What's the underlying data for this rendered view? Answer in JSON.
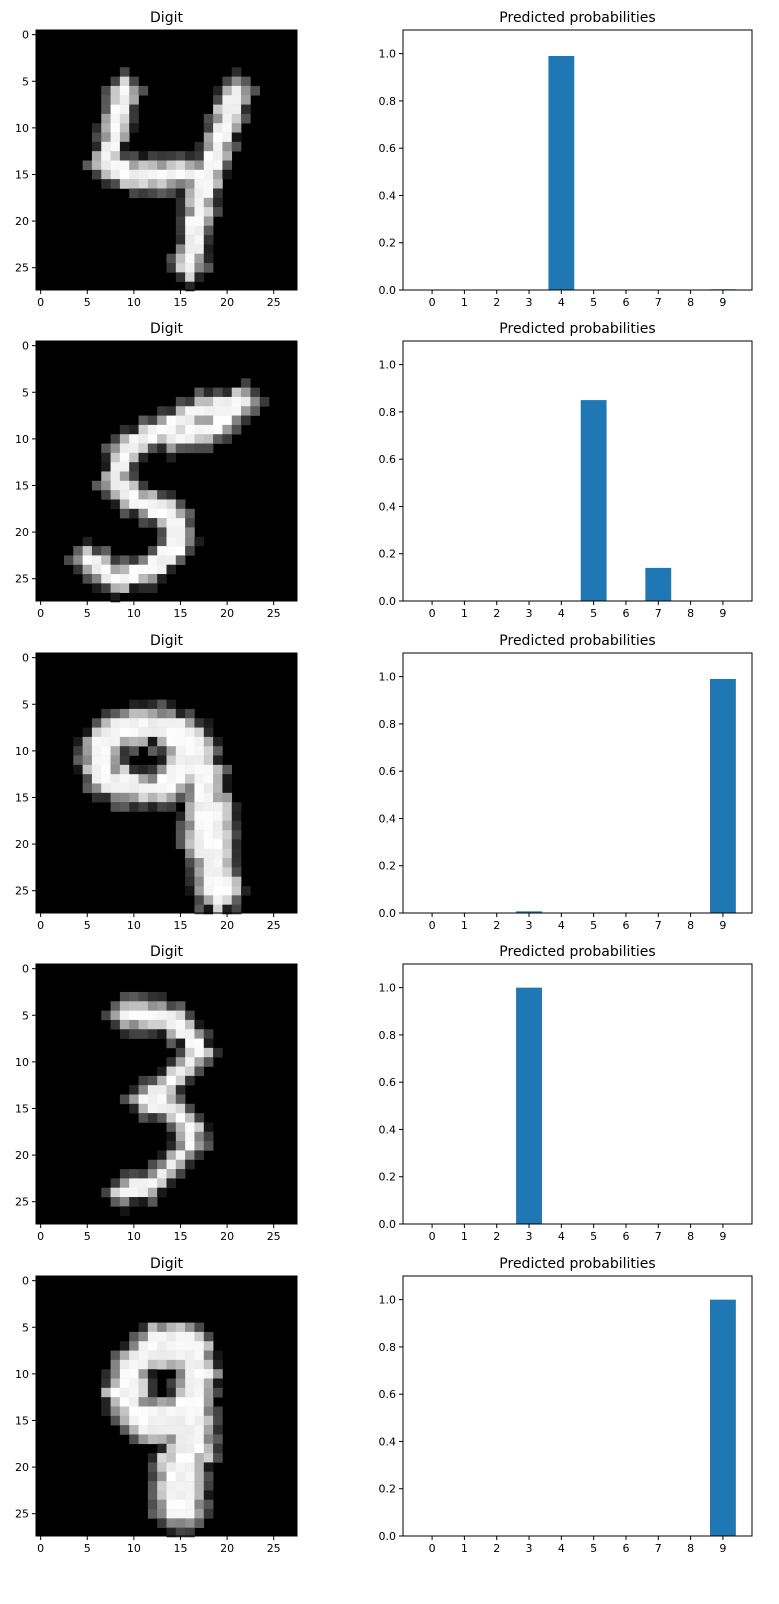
{
  "figure": {
    "background": "#ffffff",
    "bar_color": "#1f77b4"
  },
  "chart_data": [
    {
      "row": 1,
      "digit_panel": {
        "type": "heatmap",
        "title": "Digit",
        "colormap": "gray",
        "xticks": [
          "0",
          "5",
          "10",
          "15",
          "20",
          "25"
        ],
        "yticks": [
          "0",
          "5",
          "10",
          "15",
          "20",
          "25"
        ],
        "strokes": [
          {
            "points": [
              [
                9,
                6
              ],
              [
                8,
                10
              ],
              [
                7,
                14
              ],
              [
                10,
                15
              ],
              [
                14,
                15
              ],
              [
                18,
                15
              ]
            ],
            "width": 1.3
          },
          {
            "points": [
              [
                21,
                6
              ],
              [
                19,
                12
              ],
              [
                17,
                18
              ],
              [
                16,
                25
              ]
            ],
            "width": 1.4
          }
        ]
      },
      "prob_panel": {
        "type": "bar",
        "title": "Predicted probabilities",
        "categories": [
          "0",
          "1",
          "2",
          "3",
          "4",
          "5",
          "6",
          "7",
          "8",
          "9"
        ],
        "values": [
          0.0,
          0.0,
          0.0,
          0.0,
          0.99,
          0.0,
          0.0,
          0.0,
          0.0,
          0.003
        ],
        "ylim": [
          0,
          1.1
        ],
        "yticks": [
          "0.0",
          "0.2",
          "0.4",
          "0.6",
          "0.8",
          "1.0"
        ]
      }
    },
    {
      "row": 2,
      "digit_panel": {
        "type": "heatmap",
        "title": "Digit",
        "colormap": "gray",
        "xticks": [
          "0",
          "5",
          "10",
          "15",
          "20",
          "25"
        ],
        "yticks": [
          "0",
          "5",
          "10",
          "15",
          "20",
          "25"
        ],
        "strokes": [
          {
            "points": [
              [
                22,
                6
              ],
              [
                17,
                7
              ],
              [
                13,
                9
              ],
              [
                14,
                10
              ],
              [
                18,
                9
              ],
              [
                21,
                7
              ]
            ],
            "width": 1.2
          },
          {
            "points": [
              [
                13,
                9
              ],
              [
                9,
                11
              ],
              [
                8,
                15
              ],
              [
                11,
                17
              ],
              [
                14,
                18
              ],
              [
                15,
                21
              ],
              [
                12,
                24
              ],
              [
                8,
                25
              ],
              [
                5,
                23
              ]
            ],
            "width": 1.3
          }
        ]
      },
      "prob_panel": {
        "type": "bar",
        "title": "Predicted probabilities",
        "categories": [
          "0",
          "1",
          "2",
          "3",
          "4",
          "5",
          "6",
          "7",
          "8",
          "9"
        ],
        "values": [
          0.0,
          0.0,
          0.0,
          0.0,
          0.0,
          0.85,
          0.0,
          0.14,
          0.0,
          0.0
        ],
        "ylim": [
          0,
          1.1
        ],
        "yticks": [
          "0.0",
          "0.2",
          "0.4",
          "0.6",
          "0.8",
          "1.0"
        ]
      }
    },
    {
      "row": 3,
      "digit_panel": {
        "type": "heatmap",
        "title": "Digit",
        "colormap": "gray",
        "xticks": [
          "0",
          "5",
          "10",
          "15",
          "20",
          "25"
        ],
        "yticks": [
          "0",
          "5",
          "10",
          "15",
          "20",
          "25"
        ],
        "strokes": [
          {
            "points": [
              [
                15,
                8
              ],
              [
                12,
                7
              ],
              [
                8,
                8
              ],
              [
                6,
                10
              ],
              [
                7,
                13
              ],
              [
                10,
                14
              ],
              [
                13,
                14
              ],
              [
                15,
                12
              ],
              [
                15,
                9
              ],
              [
                15,
                8
              ]
            ],
            "width": 1.8
          },
          {
            "points": [
              [
                14,
                8
              ],
              [
                16,
                9
              ],
              [
                17,
                12
              ],
              [
                18,
                16
              ],
              [
                18,
                20
              ],
              [
                19,
                25
              ]
            ],
            "width": 2.2
          }
        ]
      },
      "prob_panel": {
        "type": "bar",
        "title": "Predicted probabilities",
        "categories": [
          "0",
          "1",
          "2",
          "3",
          "4",
          "5",
          "6",
          "7",
          "8",
          "9"
        ],
        "values": [
          0.0,
          0.0,
          0.0,
          0.007,
          0.0,
          0.0,
          0.0,
          0.0,
          0.0,
          0.99
        ],
        "ylim": [
          0,
          1.1
        ],
        "yticks": [
          "0.0",
          "0.2",
          "0.4",
          "0.6",
          "0.8",
          "1.0"
        ]
      }
    },
    {
      "row": 4,
      "digit_panel": {
        "type": "heatmap",
        "title": "Digit",
        "colormap": "gray",
        "xticks": [
          "0",
          "5",
          "10",
          "15",
          "20",
          "25"
        ],
        "yticks": [
          "0",
          "5",
          "10",
          "15",
          "20",
          "25"
        ],
        "strokes": [
          {
            "points": [
              [
                9,
                5
              ],
              [
                13,
                5
              ],
              [
                16,
                7
              ],
              [
                17,
                9
              ],
              [
                15,
                11
              ],
              [
                13,
                13
              ],
              [
                11,
                14
              ],
              [
                14,
                15
              ],
              [
                16,
                17
              ],
              [
                16,
                19
              ],
              [
                14,
                21
              ],
              [
                12,
                23
              ],
              [
                9,
                24
              ]
            ],
            "width": 1.2
          }
        ]
      },
      "prob_panel": {
        "type": "bar",
        "title": "Predicted probabilities",
        "categories": [
          "0",
          "1",
          "2",
          "3",
          "4",
          "5",
          "6",
          "7",
          "8",
          "9"
        ],
        "values": [
          0.0,
          0.0,
          0.0,
          1.0,
          0.0,
          0.0,
          0.0,
          0.002,
          0.0,
          0.0
        ],
        "ylim": [
          0,
          1.1
        ],
        "yticks": [
          "0.0",
          "0.2",
          "0.4",
          "0.6",
          "0.8",
          "1.0"
        ]
      }
    },
    {
      "row": 5,
      "digit_panel": {
        "type": "heatmap",
        "title": "Digit",
        "colormap": "gray",
        "xticks": [
          "0",
          "5",
          "10",
          "15",
          "20",
          "25"
        ],
        "yticks": [
          "0",
          "5",
          "10",
          "15",
          "20",
          "25"
        ],
        "strokes": [
          {
            "points": [
              [
                16,
                7
              ],
              [
                12,
                7
              ],
              [
                10,
                9
              ],
              [
                9,
                12
              ],
              [
                11,
                15
              ],
              [
                14,
                15
              ],
              [
                16,
                13
              ],
              [
                17,
                10
              ],
              [
                16,
                7
              ]
            ],
            "width": 2.0
          },
          {
            "points": [
              [
                16,
                13
              ],
              [
                16,
                17
              ],
              [
                15,
                21
              ],
              [
                15,
                24
              ]
            ],
            "width": 2.6
          }
        ]
      },
      "prob_panel": {
        "type": "bar",
        "title": "Predicted probabilities",
        "categories": [
          "0",
          "1",
          "2",
          "3",
          "4",
          "5",
          "6",
          "7",
          "8",
          "9"
        ],
        "values": [
          0.0,
          0.0,
          0.0,
          0.0,
          0.0,
          0.0,
          0.0,
          0.0,
          0.0,
          1.0
        ],
        "ylim": [
          0,
          1.1
        ],
        "yticks": [
          "0.0",
          "0.2",
          "0.4",
          "0.6",
          "0.8",
          "1.0"
        ]
      }
    }
  ]
}
